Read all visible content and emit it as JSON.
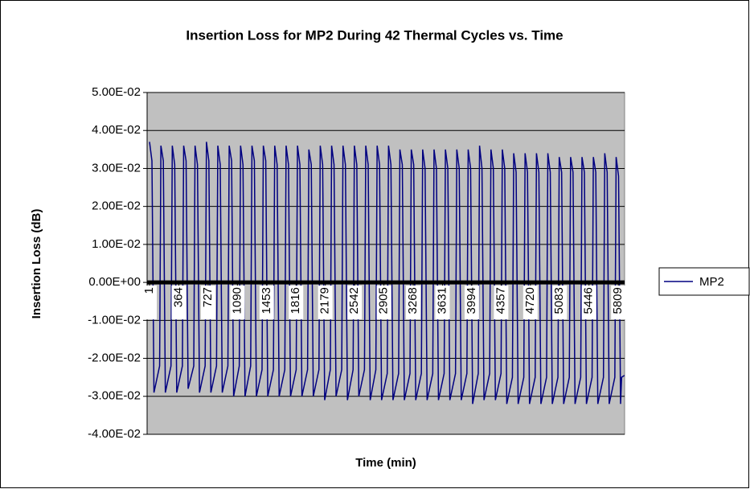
{
  "chart_data": {
    "type": "line",
    "title": "Insertion Loss for MP2 During 42 Thermal Cycles vs. Time",
    "x_label": "Time (min)",
    "y_label": "Insertion Loss (dB)",
    "x": [
      1,
      31,
      56,
      126,
      142,
      172,
      197,
      267,
      283,
      313,
      338,
      408,
      424,
      454,
      479,
      549,
      565,
      595,
      620,
      690,
      706,
      736,
      761,
      831,
      847,
      877,
      902,
      972,
      988,
      1018,
      1043,
      1113,
      1129,
      1159,
      1184,
      1254,
      1270,
      1300,
      1325,
      1395,
      1411,
      1441,
      1466,
      1536,
      1552,
      1582,
      1607,
      1677,
      1693,
      1723,
      1748,
      1818,
      1834,
      1864,
      1889,
      1959,
      1975,
      2005,
      2030,
      2100,
      2116,
      2146,
      2171,
      2241,
      2257,
      2287,
      2312,
      2382,
      2398,
      2428,
      2453,
      2523,
      2539,
      2569,
      2594,
      2664,
      2680,
      2710,
      2735,
      2805,
      2821,
      2851,
      2876,
      2946,
      2962,
      2992,
      3017,
      3087,
      3103,
      3133,
      3158,
      3228,
      3244,
      3274,
      3299,
      3369,
      3385,
      3415,
      3440,
      3510,
      3526,
      3556,
      3581,
      3651,
      3667,
      3697,
      3722,
      3792,
      3808,
      3838,
      3863,
      3933,
      3949,
      3979,
      4004,
      4074,
      4090,
      4120,
      4145,
      4215,
      4231,
      4261,
      4286,
      4356,
      4372,
      4402,
      4427,
      4497,
      4513,
      4543,
      4568,
      4638,
      4654,
      4684,
      4709,
      4779,
      4795,
      4825,
      4850,
      4920,
      4936,
      4966,
      4991,
      5061,
      5077,
      5107,
      5132,
      5202,
      5218,
      5248,
      5273,
      5343,
      5359,
      5389,
      5414,
      5484,
      5500,
      5530,
      5555,
      5625,
      5641,
      5671,
      5696,
      5766,
      5782,
      5812,
      5837,
      5850,
      5885
    ],
    "series": [
      {
        "name": "MP2",
        "color": "#000080",
        "values": [
          0.037,
          0.032,
          -0.029,
          -0.022,
          0.036,
          0.032,
          -0.029,
          -0.022,
          0.036,
          0.031,
          -0.029,
          -0.022,
          0.036,
          0.032,
          -0.028,
          -0.022,
          0.036,
          0.031,
          -0.029,
          -0.022,
          0.037,
          0.032,
          -0.029,
          -0.022,
          0.036,
          0.031,
          -0.029,
          -0.022,
          0.036,
          0.032,
          -0.03,
          -0.022,
          0.036,
          0.031,
          -0.03,
          -0.022,
          0.036,
          0.032,
          -0.03,
          -0.023,
          0.036,
          0.032,
          -0.03,
          -0.023,
          0.036,
          0.031,
          -0.03,
          -0.023,
          0.036,
          0.031,
          -0.03,
          -0.023,
          0.036,
          0.031,
          -0.03,
          -0.023,
          0.035,
          0.031,
          -0.03,
          -0.023,
          0.036,
          0.031,
          -0.031,
          -0.023,
          0.036,
          0.031,
          -0.03,
          -0.023,
          0.036,
          0.031,
          -0.031,
          -0.023,
          0.036,
          0.031,
          -0.03,
          -0.023,
          0.036,
          0.031,
          -0.031,
          -0.023,
          0.036,
          0.031,
          -0.031,
          -0.024,
          0.036,
          0.031,
          -0.031,
          -0.024,
          0.035,
          0.031,
          -0.031,
          -0.024,
          0.035,
          0.031,
          -0.031,
          -0.024,
          0.035,
          0.03,
          -0.031,
          -0.024,
          0.035,
          0.03,
          -0.031,
          -0.024,
          0.035,
          0.03,
          -0.031,
          -0.024,
          0.035,
          0.03,
          -0.031,
          -0.024,
          0.035,
          0.03,
          -0.032,
          -0.024,
          0.036,
          0.03,
          -0.031,
          -0.024,
          0.035,
          0.03,
          -0.031,
          -0.024,
          0.035,
          0.03,
          -0.032,
          -0.025,
          0.034,
          0.029,
          -0.032,
          -0.025,
          0.034,
          0.029,
          -0.032,
          -0.025,
          0.034,
          0.029,
          -0.032,
          -0.025,
          0.034,
          0.029,
          -0.032,
          -0.025,
          0.033,
          0.029,
          -0.032,
          -0.025,
          0.033,
          0.029,
          -0.032,
          -0.025,
          0.033,
          0.029,
          -0.032,
          -0.025,
          0.033,
          0.029,
          -0.032,
          -0.025,
          0.034,
          0.029,
          -0.032,
          -0.025,
          0.033,
          0.028,
          -0.032,
          -0.025,
          -0.0245
        ]
      }
    ],
    "xlim": [
      -29,
      5887
    ],
    "xticks": [
      1,
      364,
      727,
      1090,
      1453,
      1816,
      2179,
      2542,
      2905,
      3268,
      3631,
      3994,
      4357,
      4720,
      5083,
      5446,
      5809
    ],
    "ylim": [
      -0.04,
      0.05
    ],
    "yticks": [
      {
        "value": -0.04,
        "label": "-4.00E-02"
      },
      {
        "value": -0.03,
        "label": "-3.00E-02"
      },
      {
        "value": -0.02,
        "label": "-2.00E-02"
      },
      {
        "value": -0.01,
        "label": "-1.00E-02"
      },
      {
        "value": 0,
        "label": "0.00E+00"
      },
      {
        "value": 0.01,
        "label": "1.00E-02"
      },
      {
        "value": 0.02,
        "label": "2.00E-02"
      },
      {
        "value": 0.03,
        "label": "3.00E-02"
      },
      {
        "value": 0.04,
        "label": "4.00E-02"
      },
      {
        "value": 0.05,
        "label": "5.00E-02"
      }
    ],
    "grid": true,
    "legend": "right",
    "plot_background": "#c0c0c0"
  }
}
